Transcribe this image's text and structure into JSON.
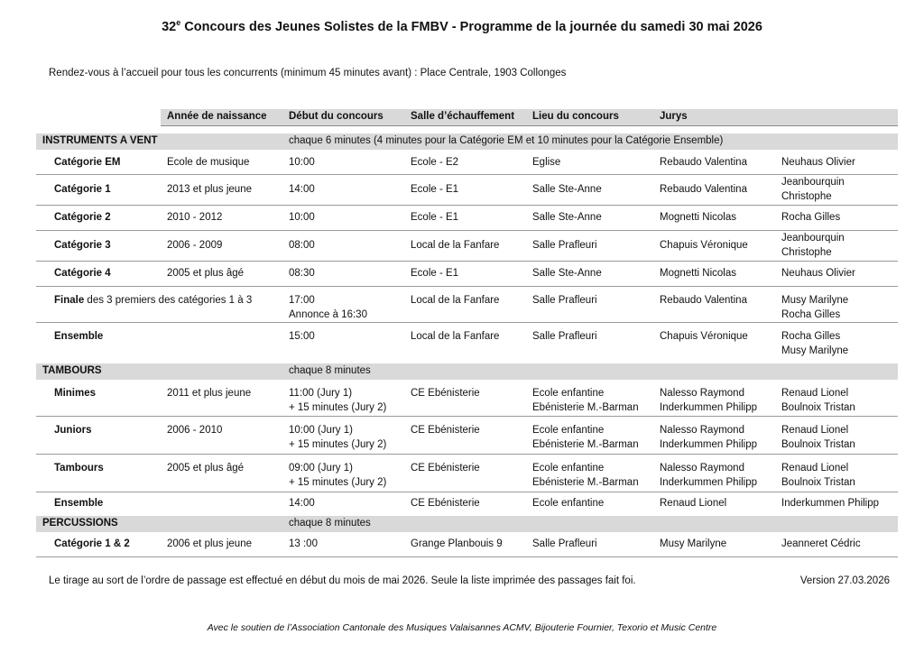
{
  "title": {
    "number": "32",
    "superscript": "e",
    "text": " Concours des Jeunes Solistes de la FMBV - Programme de la journée du samedi 30 mai 2026"
  },
  "intro": "Rendez-vous à l’accueil pour tous les concurrents (minimum 45 minutes avant) : Place Centrale, 1903 Collonges",
  "headers": [
    "Année de naissance",
    "Début du concours",
    "Salle d’échauffement",
    "Lieu du concours",
    "Jurys"
  ],
  "sections": [
    {
      "label": "INSTRUMENTS A VENT",
      "note": "chaque 6 minutes (4 minutes pour la Catégorie EM et 10 minutes pour la Catégorie Ensemble)",
      "rows": [
        {
          "label": "Catégorie EM",
          "year": "Ecole de musique",
          "start": [
            "10:00"
          ],
          "warmup": "Ecole - E2",
          "venue": [
            "Eglise"
          ],
          "jury1": [
            "Rebaudo Valentina"
          ],
          "jury2": [
            "Neuhaus Olivier"
          ]
        },
        {
          "label": "Catégorie 1",
          "year": "2013 et plus jeune",
          "start": [
            "14:00"
          ],
          "warmup": "Ecole - E1",
          "venue": [
            "Salle Ste-Anne"
          ],
          "jury1": [
            "Rebaudo Valentina"
          ],
          "jury2": [
            "Jeanbourquin",
            "Christophe"
          ]
        },
        {
          "label": "Catégorie 2",
          "year": "2010 - 2012",
          "start": [
            "10:00"
          ],
          "warmup": "Ecole - E1",
          "venue": [
            "Salle Ste-Anne"
          ],
          "jury1": [
            "Mognetti Nicolas"
          ],
          "jury2": [
            "Rocha Gilles"
          ]
        },
        {
          "label": "Catégorie 3",
          "year": "2006 - 2009",
          "start": [
            "08:00"
          ],
          "warmup": "Local de la Fanfare",
          "venue": [
            "Salle Prafleuri"
          ],
          "jury1": [
            "Chapuis Véronique"
          ],
          "jury2": [
            "Jeanbourquin",
            "Christophe"
          ]
        },
        {
          "label": "Catégorie 4",
          "year": "2005 et plus âgé",
          "start": [
            "08:30"
          ],
          "warmup": "Ecole - E1",
          "venue": [
            "Salle Ste-Anne"
          ],
          "jury1": [
            "Mognetti Nicolas"
          ],
          "jury2": [
            "Neuhaus Olivier"
          ]
        },
        {
          "label": "Finale",
          "label_suffix": " des 3 premiers des catégories 1 à 3",
          "year": "",
          "start": [
            "17:00",
            "Annonce à 16:30"
          ],
          "warmup": "Local de la Fanfare",
          "venue": [
            "Salle Prafleuri"
          ],
          "jury1": [
            "Rebaudo Valentina"
          ],
          "jury2": [
            "Musy Marilyne",
            "Rocha Gilles"
          ]
        },
        {
          "label": "Ensemble",
          "year": "",
          "start": [
            "15:00"
          ],
          "warmup": "Local de la Fanfare",
          "venue": [
            "Salle Prafleuri"
          ],
          "jury1": [
            "Chapuis Véronique"
          ],
          "jury2": [
            "Rocha Gilles",
            "Musy Marilyne"
          ]
        }
      ]
    },
    {
      "label": "TAMBOURS",
      "note": "chaque 8 minutes",
      "rows": [
        {
          "label": "Minimes",
          "year": "2011 et plus jeune",
          "start": [
            "11:00 (Jury 1)",
            "+ 15 minutes (Jury 2)"
          ],
          "warmup": "CE Ebénisterie",
          "venue": [
            "Ecole enfantine",
            "Ebénisterie M.-Barman"
          ],
          "jury1": [
            "Nalesso Raymond",
            "Inderkummen Philipp"
          ],
          "jury2": [
            "Renaud Lionel",
            "Boulnoix Tristan"
          ]
        },
        {
          "label": "Juniors",
          "year": "2006 - 2010",
          "start": [
            "10:00 (Jury 1)",
            "+ 15 minutes (Jury 2)"
          ],
          "warmup": "CE Ebénisterie",
          "venue": [
            "Ecole enfantine",
            "Ebénisterie M.-Barman"
          ],
          "jury1": [
            "Nalesso Raymond",
            "Inderkummen Philipp"
          ],
          "jury2": [
            "Renaud Lionel",
            "Boulnoix Tristan"
          ]
        },
        {
          "label": "Tambours",
          "year": "2005 et plus âgé",
          "start": [
            "09:00 (Jury 1)",
            "+ 15 minutes (Jury 2)"
          ],
          "warmup": "CE Ebénisterie",
          "venue": [
            "Ecole enfantine",
            "Ebénisterie M.-Barman"
          ],
          "jury1": [
            "Nalesso Raymond",
            "Inderkummen Philipp"
          ],
          "jury2": [
            "Renaud Lionel",
            "Boulnoix Tristan"
          ]
        },
        {
          "label": "Ensemble",
          "year": "",
          "start": [
            "14:00"
          ],
          "warmup": "CE Ebénisterie",
          "venue": [
            "Ecole enfantine"
          ],
          "jury1": [
            "Renaud Lionel"
          ],
          "jury2": [
            "Inderkummen Philipp"
          ]
        }
      ]
    },
    {
      "label": "PERCUSSIONS",
      "note": "chaque 8 minutes",
      "rows": [
        {
          "label": "Catégorie 1 & 2",
          "year": "2006 et plus jeune",
          "start": [
            "13 :00"
          ],
          "warmup": "Grange Planbouis 9",
          "venue": [
            "Salle Prafleuri"
          ],
          "jury1": [
            "Musy Marilyne"
          ],
          "jury2": [
            "Jeanneret Cédric"
          ]
        }
      ]
    }
  ],
  "footnote": "Le tirage au sort de l’ordre de passage est effectué en début du mois de mai 2026. Seule la liste imprimée des passages fait foi.",
  "version": "Version 27.03.2026",
  "sponsor": "Avec le soutien de l’Association Cantonale des Musiques Valaisannes ACMV, Bijouterie Fournier, Texorio et Music Centre"
}
